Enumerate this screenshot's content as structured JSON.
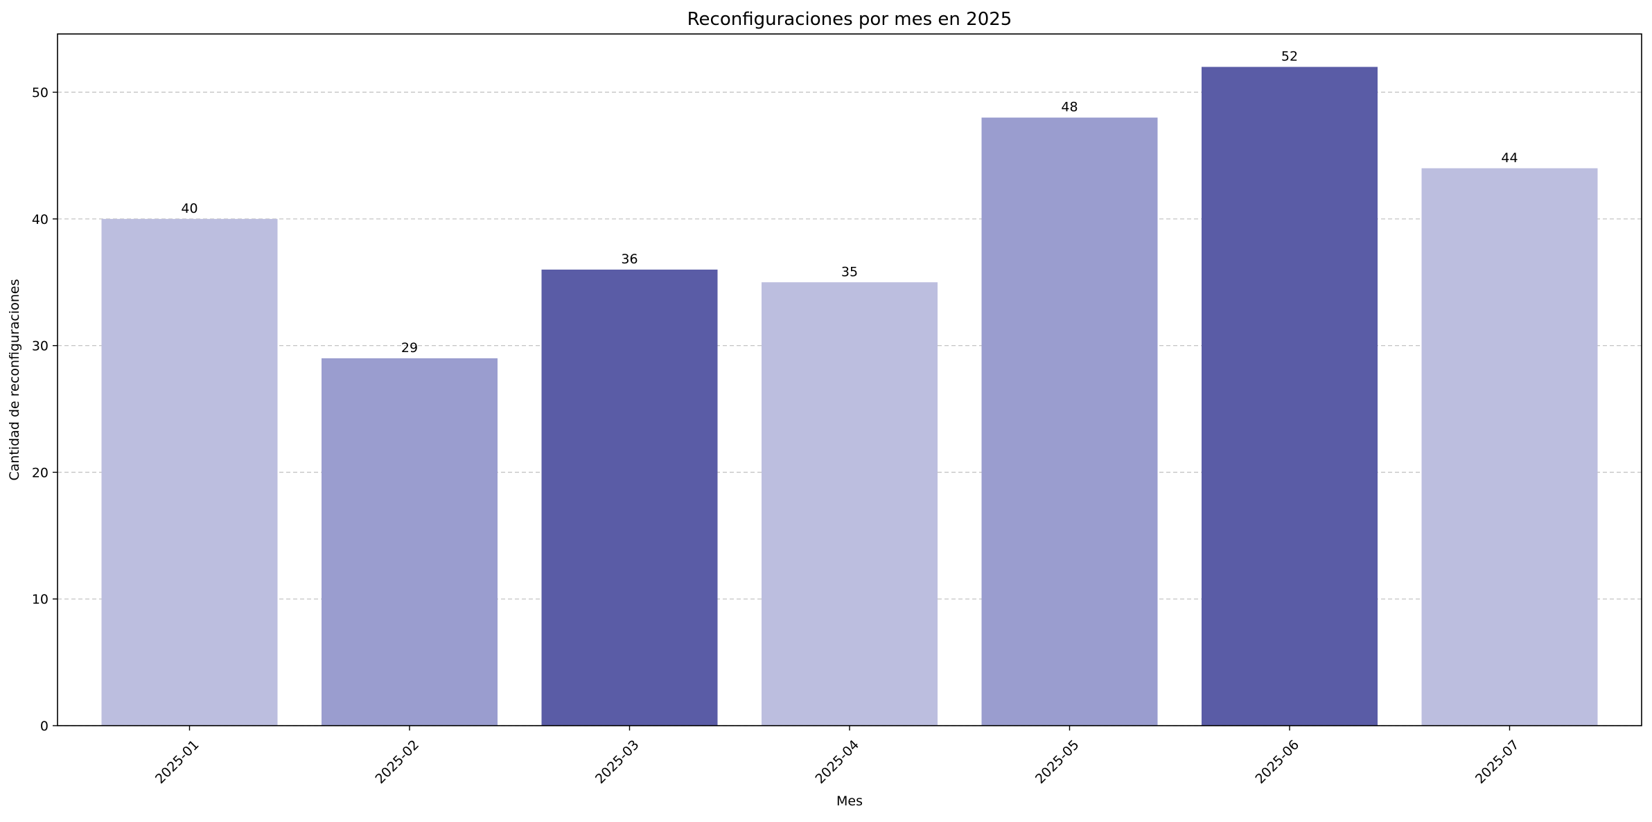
{
  "chart_data": {
    "type": "bar",
    "title": "Reconfiguraciones por mes en 2025",
    "xlabel": "Mes",
    "ylabel": "Cantidad de reconfiguraciones",
    "categories": [
      "2025-01",
      "2025-02",
      "2025-03",
      "2025-04",
      "2025-05",
      "2025-06",
      "2025-07"
    ],
    "values": [
      40,
      29,
      36,
      35,
      48,
      52,
      44
    ],
    "data_labels": [
      "40",
      "29",
      "36",
      "35",
      "48",
      "52",
      "44"
    ],
    "bar_colors": [
      "#bcbedf",
      "#9a9dcf",
      "#5a5ca6",
      "#bcbedf",
      "#9a9dcf",
      "#5a5ca6",
      "#bcbedf"
    ],
    "ylim": [
      0,
      54.6
    ],
    "yticks": [
      0,
      10,
      20,
      30,
      40,
      50
    ],
    "ytick_labels": [
      "0",
      "10",
      "20",
      "30",
      "40",
      "50"
    ],
    "grid": {
      "axis": "y",
      "style": "dashed",
      "color": "#c4c4c4"
    },
    "xtick_rotation": 45,
    "legend": "none"
  }
}
